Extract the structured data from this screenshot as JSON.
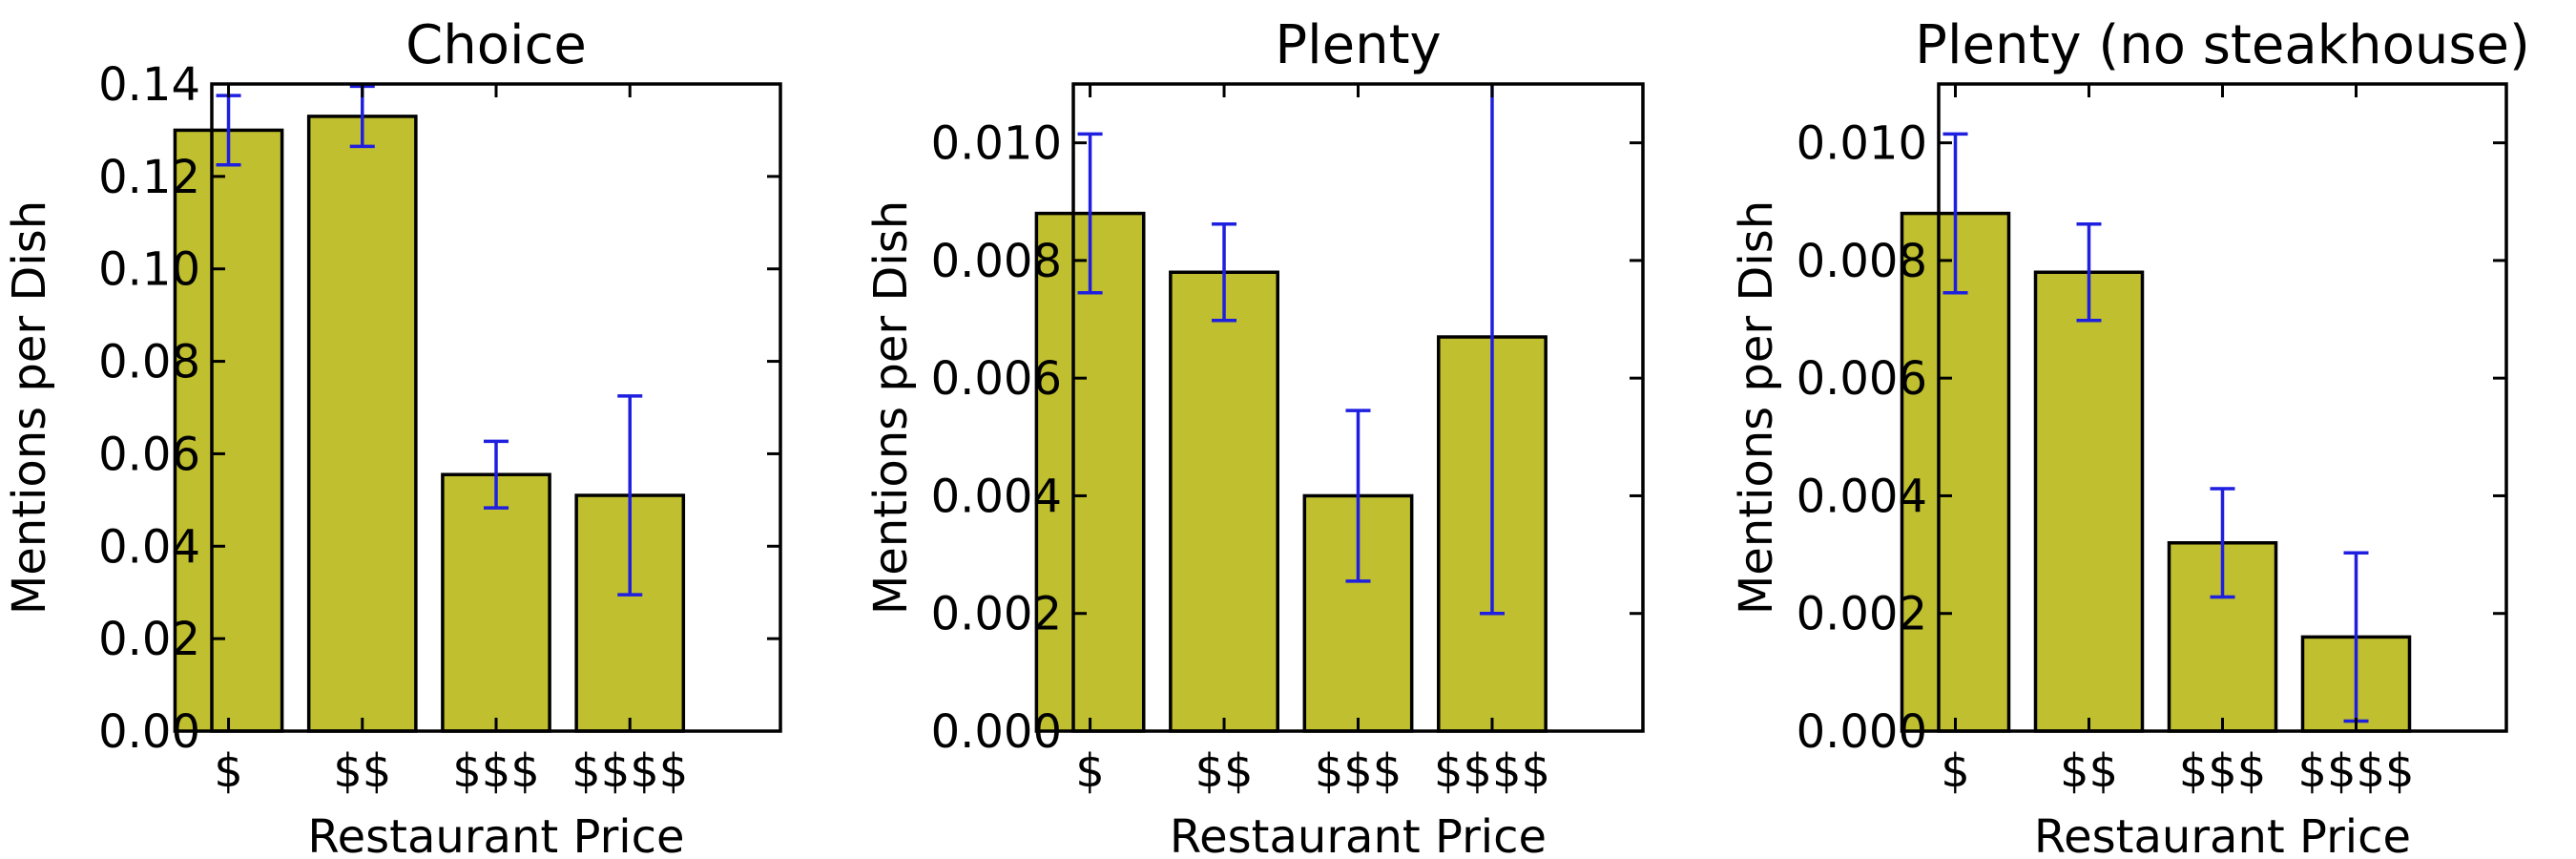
{
  "chart_data": [
    {
      "type": "bar",
      "title": "Choice",
      "xlabel": "Restaurant Price",
      "ylabel": "Mentions per Dish",
      "categories": [
        "$",
        "$$",
        "$$$",
        "$$$$"
      ],
      "values": [
        0.13,
        0.133,
        0.0555,
        0.051
      ],
      "errors": [
        0.0075,
        0.0065,
        0.0072,
        0.0215
      ],
      "ylim": [
        0,
        0.14
      ],
      "yticks": [
        "0.00",
        "0.02",
        "0.04",
        "0.06",
        "0.08",
        "0.10",
        "0.12",
        "0.14"
      ],
      "bar_color": "#bfbf2f",
      "error_color": "#1f1fe0"
    },
    {
      "type": "bar",
      "title": "Plenty",
      "xlabel": "Restaurant Price",
      "ylabel": "Mentions per Dish",
      "categories": [
        "$",
        "$$",
        "$$$",
        "$$$$"
      ],
      "values": [
        0.0088,
        0.0078,
        0.004,
        0.0067
      ],
      "errors": [
        0.00135,
        0.00082,
        0.00145,
        0.0047
      ],
      "ylim": [
        0,
        0.011
      ],
      "yticks": [
        "0.000",
        "0.002",
        "0.004",
        "0.006",
        "0.008",
        "0.010"
      ],
      "bar_color": "#bfbf2f",
      "error_color": "#1f1fe0"
    },
    {
      "type": "bar",
      "title": "Plenty (no steakhouse)",
      "xlabel": "Restaurant Price",
      "ylabel": "Mentions per Dish",
      "categories": [
        "$",
        "$$",
        "$$$",
        "$$$$"
      ],
      "values": [
        0.0088,
        0.0078,
        0.0032,
        0.0016
      ],
      "errors": [
        0.00135,
        0.00082,
        0.00092,
        0.00143
      ],
      "ylim": [
        0,
        0.011
      ],
      "yticks": [
        "0.000",
        "0.002",
        "0.004",
        "0.006",
        "0.008",
        "0.010"
      ],
      "bar_color": "#bfbf2f",
      "error_color": "#1f1fe0"
    }
  ]
}
